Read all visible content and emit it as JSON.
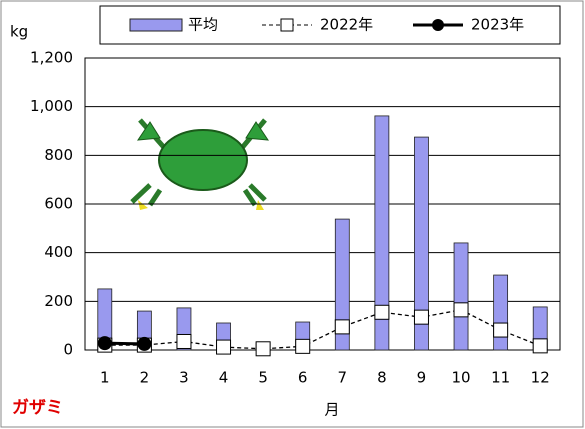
{
  "chart_data": {
    "type": "bar-line",
    "unit_label": "kg",
    "x_label": "月",
    "species": "ガザミ",
    "categories": [
      "1",
      "2",
      "3",
      "4",
      "5",
      "6",
      "7",
      "8",
      "9",
      "10",
      "11",
      "12"
    ],
    "series": [
      {
        "name": "平均",
        "type": "bar",
        "color": "#9999ee",
        "values": [
          251,
          160,
          173,
          111,
          29,
          115,
          538,
          962,
          875,
          440,
          308,
          177
        ]
      },
      {
        "name": "2022年",
        "type": "line",
        "color": "#000000",
        "values": [
          20,
          20,
          35,
          12,
          5,
          15,
          95,
          155,
          135,
          165,
          82,
          17
        ]
      },
      {
        "name": "2023年",
        "type": "line",
        "color": "#000000",
        "values": [
          28,
          25,
          null,
          null,
          null,
          null,
          null,
          null,
          null,
          null,
          null,
          null
        ]
      }
    ],
    "ylim": [
      0,
      1200
    ],
    "yticks": [
      0,
      200,
      400,
      600,
      800,
      {
        "value": 1000,
        "label": "1,000"
      },
      {
        "value": 1200,
        "label": "1,200"
      }
    ],
    "grid": true
  }
}
